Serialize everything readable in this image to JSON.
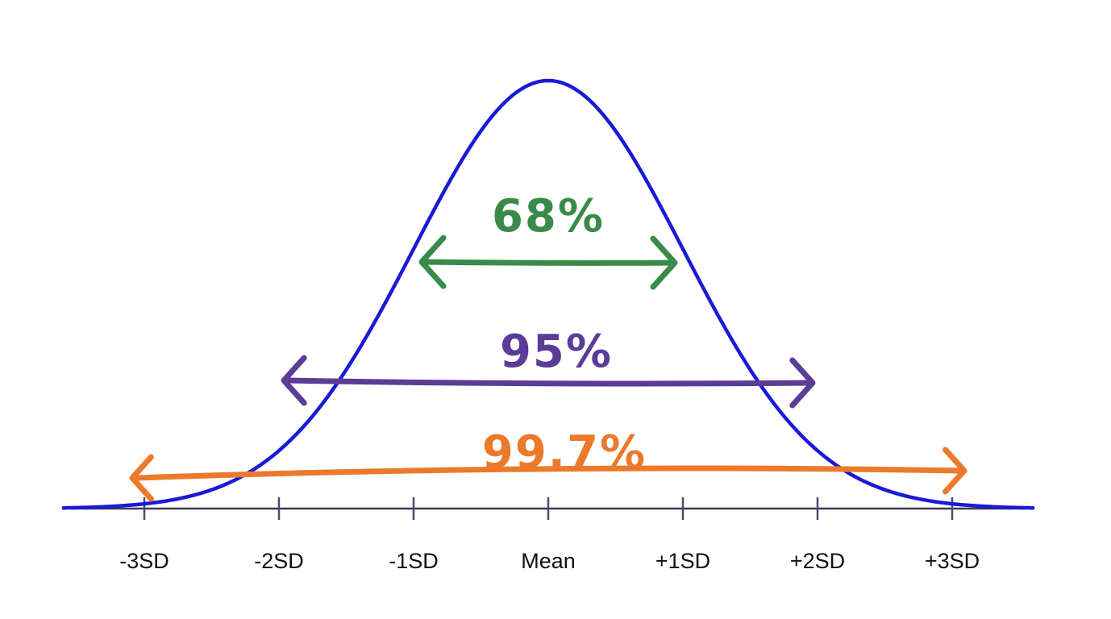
{
  "chart_data": {
    "type": "line",
    "title": "",
    "xlabel": "",
    "ylabel": "",
    "distribution": "normal",
    "x_range_sd": [
      -3.6,
      3.6
    ],
    "tick_positions_sd": [
      -3,
      -2,
      -1,
      0,
      1,
      2,
      3
    ],
    "tick_labels": [
      "-3SD",
      "-2SD",
      "-1SD",
      "Mean",
      "+1SD",
      "+2SD",
      "+3SD"
    ],
    "curve_color": "#1a1ad6",
    "axis_color": "#3a3a55",
    "ranges": [
      {
        "label": "68%",
        "from_sd": -1,
        "to_sd": 1,
        "color": "#3a8a4a"
      },
      {
        "label": "95%",
        "from_sd": -2,
        "to_sd": 2,
        "color": "#5b3c96"
      },
      {
        "label": "99.7%",
        "from_sd": -3,
        "to_sd": 3,
        "color": "#ec7a2c"
      }
    ]
  }
}
